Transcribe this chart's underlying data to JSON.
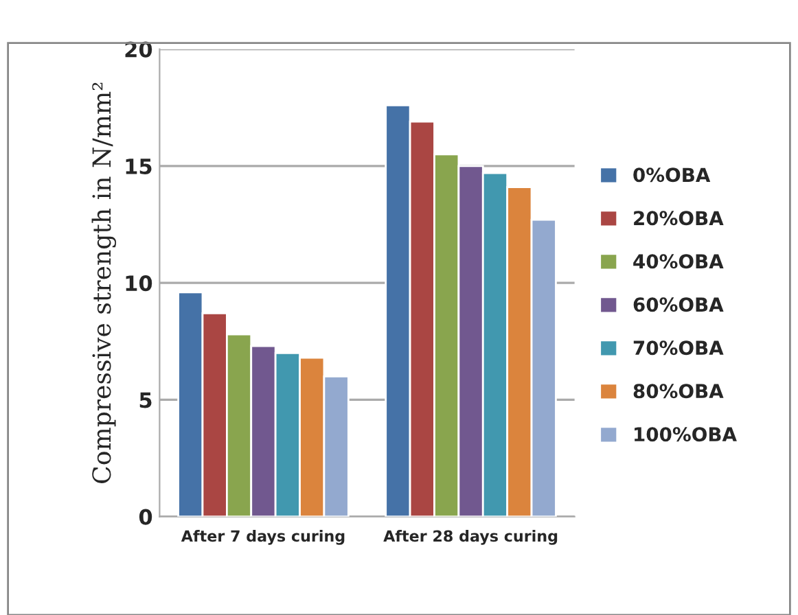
{
  "chart_data": {
    "type": "bar",
    "ylabel": "Compressive strength in N/mm²",
    "categories": [
      "After 7 days curing",
      "After 28 days curing"
    ],
    "series": [
      {
        "name": "0%OBA",
        "color": "#4572a7",
        "values": [
          9.6,
          17.6
        ]
      },
      {
        "name": "20%OBA",
        "color": "#aa4643",
        "values": [
          8.7,
          16.9
        ]
      },
      {
        "name": "40%OBA",
        "color": "#89a54e",
        "values": [
          7.8,
          15.5
        ]
      },
      {
        "name": "60%OBA",
        "color": "#71588f",
        "values": [
          7.3,
          15.0
        ]
      },
      {
        "name": "70%OBA",
        "color": "#4198af",
        "values": [
          7.0,
          14.7
        ]
      },
      {
        "name": "80%OBA",
        "color": "#db843d",
        "values": [
          6.8,
          14.1
        ]
      },
      {
        "name": "100%OBA",
        "color": "#93a9cf",
        "values": [
          6.0,
          12.7
        ]
      }
    ],
    "ylim": [
      0,
      20
    ],
    "yticks": [
      0,
      5,
      10,
      15,
      20
    ],
    "grid": "y",
    "legend": "right"
  }
}
